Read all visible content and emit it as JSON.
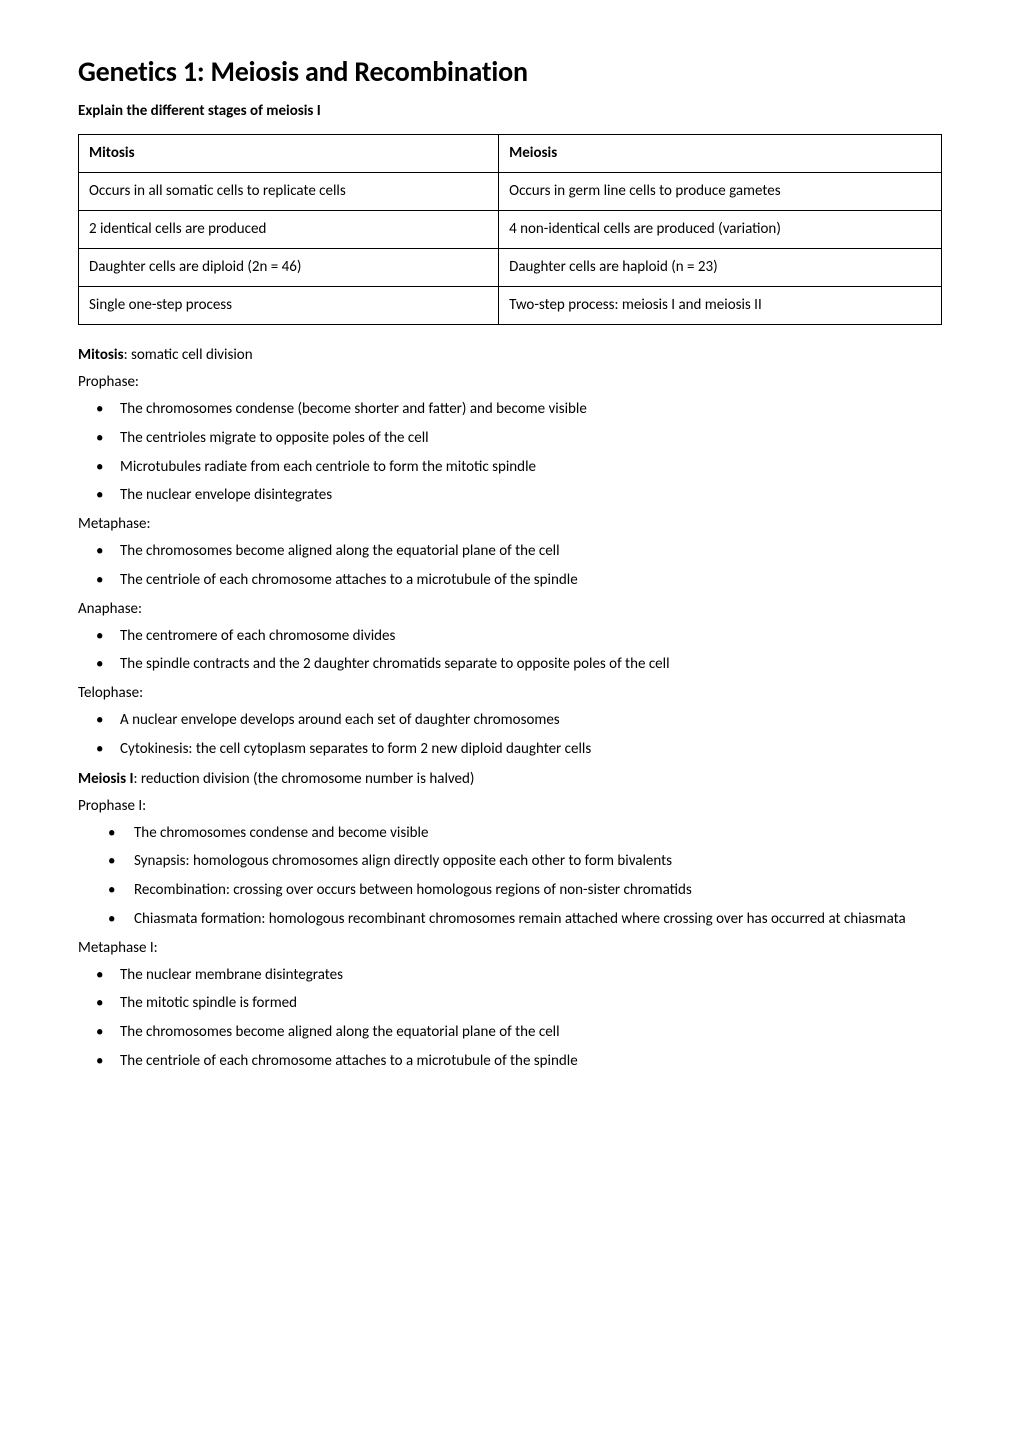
{
  "title": "Genetics 1: Meiosis and Recombination",
  "subheading": "Explain the different stages of meiosis I",
  "table": {
    "columns": [
      "Mitosis",
      "Meiosis"
    ],
    "rows": [
      [
        "Occurs in all somatic cells to replicate cells",
        "Occurs in germ line cells to produce gametes"
      ],
      [
        "2 identical cells are produced",
        "4 non-identical cells are produced (variation)"
      ],
      [
        "Daughter cells are diploid (2n = 46)",
        "Daughter cells are haploid (n = 23)"
      ],
      [
        "Single one-step process",
        "Two-step process: meiosis I and meiosis II"
      ]
    ]
  },
  "mitosis": {
    "label_bold": "Mitosis",
    "label_rest": ": somatic cell division",
    "phases": [
      {
        "name": "Prophase:",
        "items": [
          "The chromosomes condense (become shorter and fatter) and become visible",
          "The centrioles migrate to opposite poles of the cell",
          "Microtubules radiate from each centriole to form the mitotic spindle",
          "The nuclear envelope disintegrates"
        ]
      },
      {
        "name": "Metaphase:",
        "items": [
          "The chromosomes become aligned along the equatorial plane of the cell",
          "The centriole of each chromosome attaches to a microtubule of the spindle"
        ]
      },
      {
        "name": "Anaphase:",
        "items": [
          "The centromere of each chromosome divides",
          "The spindle contracts and the 2 daughter chromatids separate to opposite poles of the cell"
        ]
      },
      {
        "name": "Telophase:",
        "items": [
          "A nuclear envelope develops around each set of daughter chromosomes",
          "Cytokinesis: the cell cytoplasm separates to form 2 new diploid daughter cells"
        ]
      }
    ]
  },
  "meiosis1": {
    "label_bold": "Meiosis I",
    "label_rest": ": reduction division (the chromosome number is halved)",
    "phases": [
      {
        "name": "Prophase I:",
        "indent": true,
        "items": [
          "The chromosomes condense and become visible",
          "Synapsis: homologous chromosomes align directly opposite each other to form bivalents",
          "Recombination: crossing over occurs between homologous regions of non-sister chromatids",
          "Chiasmata formation: homologous recombinant chromosomes remain attached where crossing over has occurred at chiasmata"
        ]
      },
      {
        "name": "Metaphase I:",
        "indent": false,
        "items": [
          "The nuclear membrane disintegrates",
          "The mitotic spindle is formed",
          "The chromosomes become aligned along the equatorial plane of the cell",
          "The centriole of each chromosome attaches to a microtubule of the spindle"
        ]
      }
    ]
  }
}
